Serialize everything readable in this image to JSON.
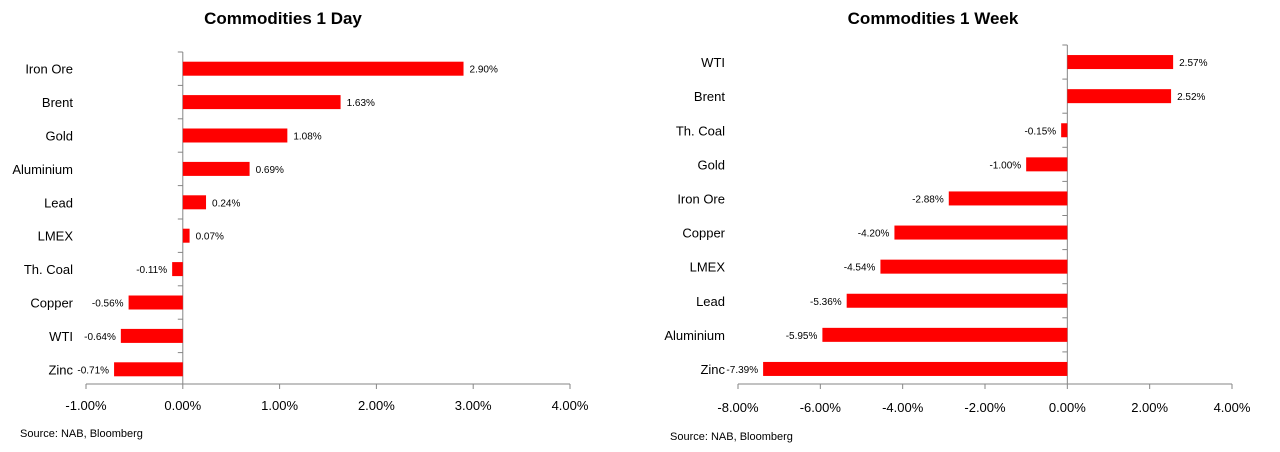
{
  "chart_data": [
    {
      "type": "bar",
      "orientation": "horizontal",
      "title": "Commodities 1 Day",
      "categories": [
        "Iron Ore",
        "Brent",
        "Gold",
        "Aluminium",
        "Lead",
        "LMEX",
        "Th. Coal",
        "Copper",
        "WTI",
        "Zinc"
      ],
      "values": [
        2.9,
        1.63,
        1.08,
        0.69,
        0.24,
        0.07,
        -0.11,
        -0.56,
        -0.64,
        -0.71
      ],
      "value_labels": [
        "2.90%",
        "1.63%",
        "1.08%",
        "0.69%",
        "0.24%",
        "0.07%",
        "-0.11%",
        "-0.56%",
        "-0.64%",
        "-0.71%"
      ],
      "xlim": [
        -1.0,
        4.0
      ],
      "x_ticks": [
        -1,
        0,
        1,
        2,
        3,
        4
      ],
      "x_tick_labels": [
        "-1.00%",
        "0.00%",
        "1.00%",
        "2.00%",
        "3.00%",
        "4.00%"
      ],
      "bar_color": "#ff0000",
      "grid": false,
      "source": "Source: NAB, Bloomberg"
    },
    {
      "type": "bar",
      "orientation": "horizontal",
      "title": "Commodities 1 Week",
      "categories": [
        "WTI",
        "Brent",
        "Th. Coal",
        "Gold",
        "Iron Ore",
        "Copper",
        "LMEX",
        "Lead",
        "Aluminium",
        "Zinc"
      ],
      "values": [
        2.57,
        2.52,
        -0.15,
        -1.0,
        -2.88,
        -4.2,
        -4.54,
        -5.36,
        -5.95,
        -7.39
      ],
      "value_labels": [
        "2.57%",
        "2.52%",
        "-0.15%",
        "-1.00%",
        "-2.88%",
        "-4.20%",
        "-4.54%",
        "-5.36%",
        "-5.95%",
        "-7.39%"
      ],
      "xlim": [
        -8.0,
        4.0
      ],
      "x_ticks": [
        -8,
        -6,
        -4,
        -2,
        0,
        2,
        4
      ],
      "x_tick_labels": [
        "-8.00%",
        "-6.00%",
        "-4.00%",
        "-2.00%",
        "0.00%",
        "2.00%",
        "4.00%"
      ],
      "bar_color": "#ff0000",
      "grid": false,
      "source": "Source: NAB, Bloomberg"
    }
  ]
}
